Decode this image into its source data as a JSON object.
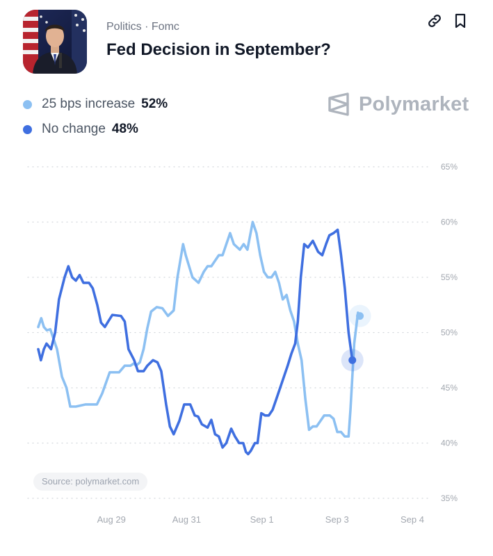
{
  "header": {
    "category": "Politics · Fomc",
    "title": "Fed Decision in September?"
  },
  "colors": {
    "series_light": "#8cc0f2",
    "series_dark": "#3f6fe0",
    "grid": "#d1d5db",
    "tick": "#a3a8b0"
  },
  "icons": [
    "link-icon",
    "bookmark-icon",
    "polymarket-logo-icon"
  ],
  "legend": [
    {
      "label": "25 bps increase",
      "pct": "52%"
    },
    {
      "label": "No change",
      "pct": "48%"
    }
  ],
  "brand": {
    "name": "Polymarket"
  },
  "source": "Source: polymarket.com",
  "chart_data": {
    "type": "line",
    "ylim": [
      35,
      65
    ],
    "yticks": [
      35,
      40,
      45,
      50,
      55,
      60,
      65
    ],
    "ytick_labels": [
      "35%",
      "40%",
      "45%",
      "50%",
      "55%",
      "60%",
      "65%"
    ],
    "xlim": [
      0,
      100
    ],
    "xticks": [
      {
        "label": "Aug 29",
        "x": 20
      },
      {
        "label": "Aug 31",
        "x": 40
      },
      {
        "label": "Sep 1",
        "x": 60
      },
      {
        "label": "Sep 3",
        "x": 80
      },
      {
        "label": "Sep 4",
        "x": 100
      }
    ],
    "grid": true,
    "legend_position": "top-left",
    "series": [
      {
        "name": "25 bps increase",
        "points": [
          [
            0,
            50.5
          ],
          [
            0.8,
            51.3
          ],
          [
            1.5,
            50.5
          ],
          [
            2.3,
            50.2
          ],
          [
            3.2,
            50.3
          ],
          [
            4,
            49.5
          ],
          [
            5,
            48.5
          ],
          [
            6.3,
            46
          ],
          [
            7.5,
            45
          ],
          [
            8.5,
            43.3
          ],
          [
            10,
            43.3
          ],
          [
            12.6,
            43.5
          ],
          [
            15.6,
            43.5
          ],
          [
            17,
            44.5
          ],
          [
            19,
            46.4
          ],
          [
            21.5,
            46.4
          ],
          [
            23,
            47
          ],
          [
            24.5,
            47
          ],
          [
            25.4,
            47.2
          ],
          [
            26,
            47
          ],
          [
            27,
            47.3
          ],
          [
            28,
            48.5
          ],
          [
            29,
            50.4
          ],
          [
            30,
            51.9
          ],
          [
            31.5,
            52.3
          ],
          [
            33,
            52.2
          ],
          [
            34.5,
            51.5
          ],
          [
            36,
            52
          ],
          [
            37,
            55
          ],
          [
            38.5,
            58
          ],
          [
            39.2,
            57
          ],
          [
            41,
            55
          ],
          [
            42.6,
            54.5
          ],
          [
            44,
            55.5
          ],
          [
            45,
            56
          ],
          [
            46,
            56
          ],
          [
            47,
            56.5
          ],
          [
            48,
            57
          ],
          [
            49,
            57
          ],
          [
            50,
            58
          ],
          [
            51,
            59
          ],
          [
            52,
            58
          ],
          [
            53.6,
            57.5
          ],
          [
            54.6,
            58
          ],
          [
            55.6,
            57.5
          ],
          [
            57,
            60
          ],
          [
            58,
            59
          ],
          [
            59,
            57
          ],
          [
            60,
            55.5
          ],
          [
            61,
            55
          ],
          [
            62,
            55
          ],
          [
            63,
            55.5
          ],
          [
            64,
            54.5
          ],
          [
            65,
            53
          ],
          [
            66,
            53.4
          ],
          [
            67,
            52
          ],
          [
            68,
            51
          ],
          [
            69,
            49
          ],
          [
            70,
            47.5
          ],
          [
            71,
            44
          ],
          [
            72,
            41.2
          ],
          [
            73,
            41.5
          ],
          [
            74,
            41.5
          ],
          [
            75,
            42
          ],
          [
            76,
            42.5
          ],
          [
            77.5,
            42.5
          ],
          [
            78.5,
            42.2
          ],
          [
            79.5,
            41
          ],
          [
            80.5,
            41
          ],
          [
            81.5,
            40.6
          ],
          [
            82.5,
            40.6
          ],
          [
            83,
            43
          ],
          [
            84,
            49
          ],
          [
            85,
            51.8
          ],
          [
            85.5,
            51.5
          ]
        ],
        "end_value": 51.5
      },
      {
        "name": "No change",
        "points": [
          [
            0,
            48.5
          ],
          [
            0.7,
            47.5
          ],
          [
            1.5,
            48.5
          ],
          [
            2.2,
            49
          ],
          [
            3.4,
            48.5
          ],
          [
            4.5,
            50
          ],
          [
            5.5,
            53
          ],
          [
            7,
            55
          ],
          [
            8,
            56
          ],
          [
            9,
            55
          ],
          [
            10,
            54.7
          ],
          [
            11,
            55.2
          ],
          [
            12,
            54.5
          ],
          [
            13.5,
            54.5
          ],
          [
            14.5,
            54
          ],
          [
            15.7,
            52.5
          ],
          [
            16.7,
            50.9
          ],
          [
            17.7,
            50.5
          ],
          [
            18.6,
            51
          ],
          [
            19.7,
            51.6
          ],
          [
            22,
            51.5
          ],
          [
            23,
            51
          ],
          [
            24,
            48.5
          ],
          [
            25.5,
            47.5
          ],
          [
            26.5,
            46.5
          ],
          [
            28,
            46.5
          ],
          [
            29,
            47
          ],
          [
            30.5,
            47.5
          ],
          [
            31.7,
            47.3
          ],
          [
            32.7,
            46.5
          ],
          [
            34,
            43.5
          ],
          [
            35,
            41.5
          ],
          [
            36,
            40.8
          ],
          [
            37.5,
            42
          ],
          [
            38.8,
            43.5
          ],
          [
            40.4,
            43.5
          ],
          [
            41.6,
            42.5
          ],
          [
            42.5,
            42.4
          ],
          [
            43.5,
            41.7
          ],
          [
            45,
            41.4
          ],
          [
            46,
            42.1
          ],
          [
            47,
            40.8
          ],
          [
            48,
            40.6
          ],
          [
            49,
            39.6
          ],
          [
            50,
            40
          ],
          [
            51.3,
            41.3
          ],
          [
            52.3,
            40.6
          ],
          [
            53.4,
            40
          ],
          [
            54.5,
            40
          ],
          [
            55.2,
            39.2
          ],
          [
            55.8,
            39
          ],
          [
            56.5,
            39.3
          ],
          [
            57.6,
            40
          ],
          [
            58.3,
            40
          ],
          [
            59.3,
            42.7
          ],
          [
            60.3,
            42.5
          ],
          [
            61.3,
            42.5
          ],
          [
            62.3,
            43
          ],
          [
            63.3,
            44
          ],
          [
            64.3,
            45
          ],
          [
            65.3,
            46
          ],
          [
            66.3,
            47
          ],
          [
            67.3,
            48.1
          ],
          [
            68.3,
            49
          ],
          [
            69,
            51
          ],
          [
            69.8,
            55
          ],
          [
            70.7,
            58
          ],
          [
            71.7,
            57.7
          ],
          [
            73,
            58.3
          ],
          [
            74.4,
            57.3
          ],
          [
            75.5,
            57
          ],
          [
            76.5,
            58
          ],
          [
            77.4,
            58.8
          ],
          [
            78.5,
            59
          ],
          [
            79.6,
            59.3
          ],
          [
            80.5,
            57
          ],
          [
            81.5,
            54
          ],
          [
            82.5,
            50
          ],
          [
            83.5,
            47.5
          ]
        ],
        "end_value": 47.5
      }
    ]
  }
}
